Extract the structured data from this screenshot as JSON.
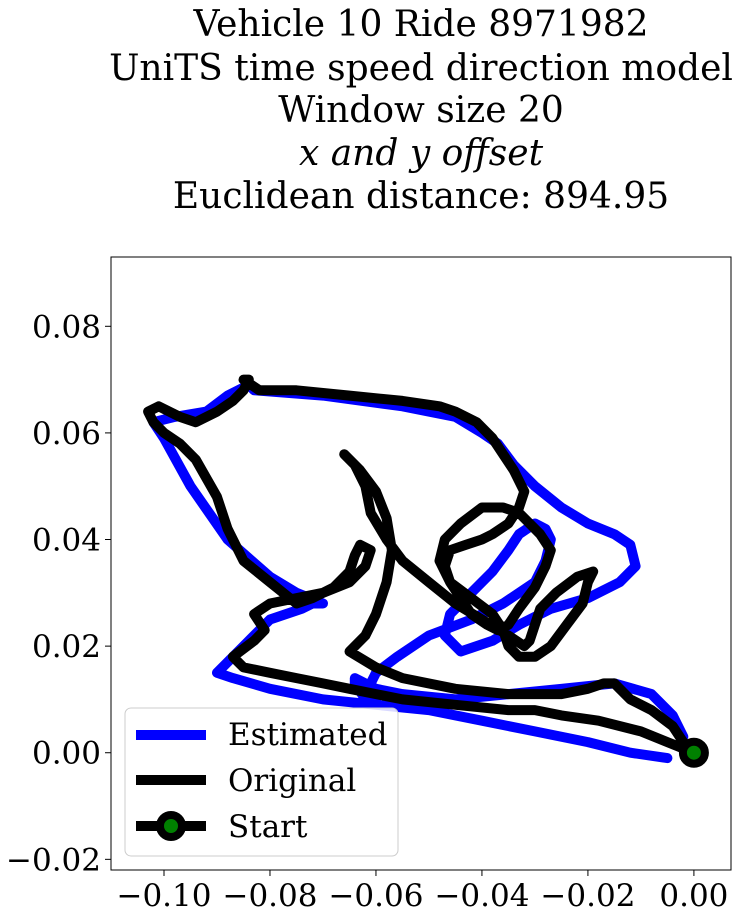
{
  "chart_data": {
    "type": "line",
    "title_lines": [
      "Vehicle 10 Ride 8971982",
      "UniTS time speed direction model",
      "Window size 20",
      "x and y offset",
      "Euclidean distance: 894.95"
    ],
    "xlabel": "",
    "ylabel": "",
    "xlim": [
      -0.11,
      0.007
    ],
    "ylim": [
      -0.022,
      0.093
    ],
    "x_ticks": [
      -0.1,
      -0.08,
      -0.06,
      -0.04,
      -0.02,
      0.0
    ],
    "x_tick_labels": [
      "−0.10",
      "−0.08",
      "−0.06",
      "−0.04",
      "−0.02",
      "0.00"
    ],
    "y_ticks": [
      -0.02,
      0.0,
      0.02,
      0.04,
      0.06,
      0.08
    ],
    "y_tick_labels": [
      "−0.02",
      "0.00",
      "0.02",
      "0.04",
      "0.06",
      "0.08"
    ],
    "grid": false,
    "legend_position": "lower-left",
    "series": [
      {
        "name": "Estimated",
        "color": "#0000ff",
        "x": [
          -0.005,
          -0.012,
          -0.02,
          -0.03,
          -0.04,
          -0.05,
          -0.06,
          -0.07,
          -0.08,
          -0.087,
          -0.09,
          -0.085,
          -0.08,
          -0.074,
          -0.072,
          -0.07,
          -0.075,
          -0.08,
          -0.088,
          -0.095,
          -0.1,
          -0.102,
          -0.098,
          -0.092,
          -0.088,
          -0.084,
          -0.083,
          -0.07,
          -0.055,
          -0.05,
          -0.045,
          -0.04,
          -0.037,
          -0.034,
          -0.03,
          -0.025,
          -0.02,
          -0.015,
          -0.012,
          -0.011,
          -0.014,
          -0.02,
          -0.027,
          -0.033,
          -0.038,
          -0.044,
          -0.047,
          -0.046,
          -0.042,
          -0.038,
          -0.035,
          -0.033,
          -0.03,
          -0.028,
          -0.027,
          -0.028,
          -0.03,
          -0.036,
          -0.042,
          -0.05,
          -0.056,
          -0.06,
          -0.061,
          -0.06,
          -0.06,
          -0.062,
          -0.064,
          -0.064,
          -0.06,
          -0.055,
          -0.045,
          -0.035,
          -0.025,
          -0.015,
          -0.008,
          -0.004,
          -0.002
        ],
        "y": [
          -0.001,
          0.0,
          0.002,
          0.004,
          0.006,
          0.008,
          0.009,
          0.01,
          0.012,
          0.014,
          0.015,
          0.02,
          0.025,
          0.027,
          0.028,
          0.028,
          0.03,
          0.033,
          0.04,
          0.05,
          0.059,
          0.062,
          0.063,
          0.064,
          0.067,
          0.069,
          0.068,
          0.067,
          0.065,
          0.064,
          0.063,
          0.06,
          0.058,
          0.054,
          0.05,
          0.046,
          0.043,
          0.041,
          0.039,
          0.035,
          0.032,
          0.029,
          0.027,
          0.024,
          0.021,
          0.019,
          0.022,
          0.026,
          0.03,
          0.034,
          0.038,
          0.041,
          0.043,
          0.042,
          0.04,
          0.036,
          0.032,
          0.028,
          0.025,
          0.022,
          0.018,
          0.015,
          0.013,
          0.011,
          0.009,
          0.01,
          0.013,
          0.014,
          0.012,
          0.011,
          0.01,
          0.011,
          0.012,
          0.013,
          0.011,
          0.007,
          0.003
        ]
      },
      {
        "name": "Original",
        "color": "#000000",
        "x": [
          0.0,
          -0.005,
          -0.01,
          -0.018,
          -0.025,
          -0.03,
          -0.035,
          -0.045,
          -0.055,
          -0.06,
          -0.065,
          -0.07,
          -0.075,
          -0.08,
          -0.085,
          -0.087,
          -0.083,
          -0.081,
          -0.083,
          -0.08,
          -0.075,
          -0.07,
          -0.065,
          -0.062,
          -0.061,
          -0.063,
          -0.064,
          -0.065,
          -0.068,
          -0.072,
          -0.075,
          -0.08,
          -0.085,
          -0.088,
          -0.09,
          -0.094,
          -0.097,
          -0.1,
          -0.102,
          -0.103,
          -0.101,
          -0.097,
          -0.094,
          -0.09,
          -0.087,
          -0.085,
          -0.084,
          -0.085,
          -0.082,
          -0.075,
          -0.065,
          -0.055,
          -0.048,
          -0.045,
          -0.041,
          -0.038,
          -0.036,
          -0.034,
          -0.032,
          -0.033,
          -0.035,
          -0.038,
          -0.04,
          -0.043,
          -0.046,
          -0.047,
          -0.046,
          -0.044,
          -0.042,
          -0.039,
          -0.037,
          -0.035,
          -0.033,
          -0.03,
          -0.028,
          -0.027,
          -0.029,
          -0.031,
          -0.033,
          -0.036,
          -0.04,
          -0.044,
          -0.047,
          -0.048,
          -0.046,
          -0.042,
          -0.038,
          -0.036,
          -0.035,
          -0.033,
          -0.03,
          -0.027,
          -0.024,
          -0.021,
          -0.02,
          -0.019,
          -0.022,
          -0.026,
          -0.029,
          -0.03,
          -0.031,
          -0.032,
          -0.035,
          -0.04,
          -0.045,
          -0.05,
          -0.055,
          -0.058,
          -0.061,
          -0.062,
          -0.064,
          -0.066,
          -0.063,
          -0.06,
          -0.058,
          -0.057,
          -0.058,
          -0.06,
          -0.062,
          -0.065,
          -0.06,
          -0.055,
          -0.045,
          -0.035,
          -0.025,
          -0.02,
          -0.017,
          -0.015,
          -0.014,
          -0.012,
          -0.008,
          -0.004,
          -0.002,
          0.0
        ],
        "y": [
          0.0,
          0.002,
          0.004,
          0.006,
          0.007,
          0.008,
          0.008,
          0.009,
          0.01,
          0.011,
          0.012,
          0.013,
          0.014,
          0.015,
          0.016,
          0.018,
          0.021,
          0.023,
          0.026,
          0.028,
          0.029,
          0.03,
          0.032,
          0.035,
          0.038,
          0.039,
          0.037,
          0.034,
          0.031,
          0.029,
          0.028,
          0.032,
          0.036,
          0.042,
          0.048,
          0.055,
          0.058,
          0.06,
          0.062,
          0.064,
          0.065,
          0.063,
          0.062,
          0.064,
          0.066,
          0.068,
          0.07,
          0.07,
          0.068,
          0.068,
          0.067,
          0.066,
          0.065,
          0.064,
          0.062,
          0.059,
          0.056,
          0.053,
          0.049,
          0.046,
          0.043,
          0.041,
          0.04,
          0.039,
          0.038,
          0.035,
          0.032,
          0.029,
          0.026,
          0.024,
          0.023,
          0.024,
          0.027,
          0.031,
          0.035,
          0.038,
          0.041,
          0.043,
          0.045,
          0.046,
          0.046,
          0.043,
          0.04,
          0.036,
          0.032,
          0.029,
          0.026,
          0.023,
          0.02,
          0.018,
          0.018,
          0.02,
          0.024,
          0.028,
          0.032,
          0.034,
          0.033,
          0.03,
          0.027,
          0.024,
          0.021,
          0.02,
          0.022,
          0.025,
          0.028,
          0.032,
          0.036,
          0.04,
          0.045,
          0.05,
          0.054,
          0.056,
          0.053,
          0.049,
          0.044,
          0.038,
          0.032,
          0.026,
          0.022,
          0.019,
          0.016,
          0.014,
          0.012,
          0.011,
          0.011,
          0.012,
          0.013,
          0.013,
          0.012,
          0.01,
          0.008,
          0.005,
          0.002,
          0.0
        ]
      }
    ],
    "start_point": {
      "name": "Start",
      "x": 0.0,
      "y": 0.0,
      "color": "#008000",
      "edge_color": "#000000"
    },
    "legend": [
      {
        "label": "Estimated",
        "color": "#0000ff",
        "marker": false
      },
      {
        "label": "Original",
        "color": "#000000",
        "marker": false
      },
      {
        "label": "Start",
        "color": "#000000",
        "marker": true,
        "marker_color": "#008000"
      }
    ]
  }
}
